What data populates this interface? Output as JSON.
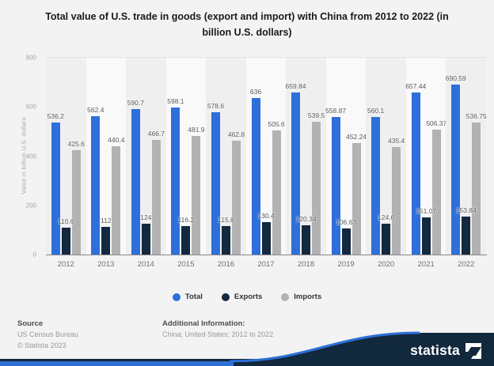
{
  "title": "Total value of U.S. trade in goods (export and import) with China from 2012 to 2022 (in\nbillion U.S. dollars)",
  "chart_data": {
    "type": "bar",
    "title": "Total value of U.S. trade in goods (export and import) with China from 2012 to 2022 (in billion U.S. dollars)",
    "categories": [
      "2012",
      "2013",
      "2014",
      "2015",
      "2016",
      "2017",
      "2018",
      "2019",
      "2020",
      "2021",
      "2022"
    ],
    "series": [
      {
        "name": "Total",
        "color": "#2d6fdb",
        "values": [
          536.2,
          562.4,
          590.7,
          598.1,
          578.6,
          636,
          659.84,
          558.87,
          560.1,
          657.44,
          690.59
        ],
        "labels": [
          "536.2",
          "562.4",
          "590.7",
          "598.1",
          "578.6",
          "636",
          "659.84",
          "558.87",
          "560.1",
          "657.44",
          "690.59"
        ]
      },
      {
        "name": "Exports",
        "color": "#13293f",
        "values": [
          110.6,
          112,
          124,
          116.2,
          115.8,
          130.4,
          120.34,
          106.63,
          124.6,
          151.07,
          153.84
        ],
        "labels": [
          "110.6",
          "112",
          "124",
          "116.2",
          "115.8",
          "130.4",
          "120.34",
          "106.63",
          "124.6",
          "151.07",
          "153.84"
        ]
      },
      {
        "name": "Imports",
        "color": "#b2b2b2",
        "values": [
          425.6,
          440.4,
          466.7,
          481.9,
          462.8,
          505.6,
          539.5,
          452.24,
          435.4,
          506.37,
          536.75
        ],
        "labels": [
          "425.6",
          "440.4",
          "466.7",
          "481.9",
          "462.8",
          "505.6",
          "539.5",
          "452.24",
          "435.4",
          "506.37",
          "536.75"
        ]
      }
    ],
    "xlabel": "",
    "ylabel": "Value in billion U.S. dollars",
    "ylim": [
      0,
      800
    ],
    "yticks": [
      0,
      200,
      400,
      600,
      800
    ],
    "grid": true,
    "legend_position": "bottom"
  },
  "footer": {
    "source_label": "Source",
    "source_lines": [
      "US Census Bureau",
      "© Statista 2023"
    ],
    "additional_label": "Additional Information:",
    "additional_text": "China; United States; 2012 to 2022"
  },
  "branding": {
    "logo_text": "statista",
    "wave_color": "#12283c",
    "accent_color": "#2e6fd6"
  }
}
